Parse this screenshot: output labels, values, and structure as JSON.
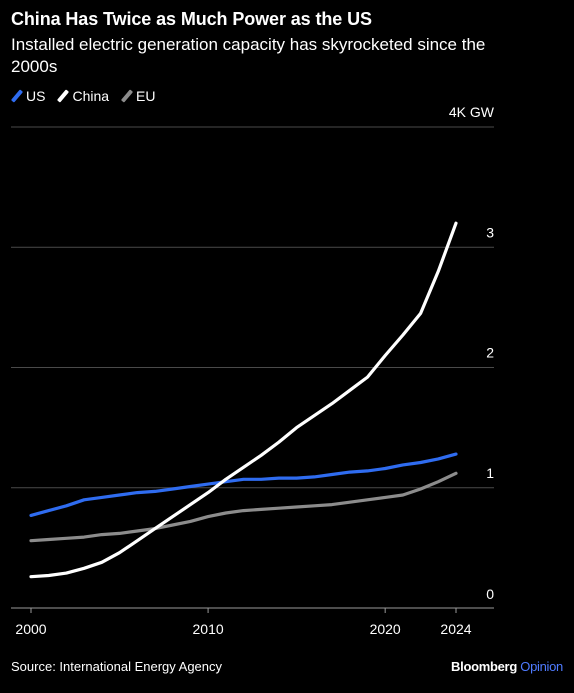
{
  "header": {
    "title": "China Has Twice as Much Power as the US",
    "subtitle": "Installed electric generation capacity has skyrocketed since the 2000s"
  },
  "legend": [
    {
      "label": "US",
      "color": "#2f6cf0"
    },
    {
      "label": "China",
      "color": "#ffffff"
    },
    {
      "label": "EU",
      "color": "#8c8c8c"
    }
  ],
  "footer": {
    "source": "Source: International Energy Agency",
    "brand": "Bloomberg",
    "brand_suffix": "Opinion"
  },
  "chart_data": {
    "type": "line",
    "ylim": [
      0,
      4
    ],
    "xlim": [
      2000,
      2024
    ],
    "y_ticks": [
      {
        "value": 0,
        "label": "0"
      },
      {
        "value": 1,
        "label": "1"
      },
      {
        "value": 2,
        "label": "2"
      },
      {
        "value": 3,
        "label": "3"
      },
      {
        "value": 4,
        "label": "4K GW"
      }
    ],
    "x_ticks": [
      {
        "value": 2000,
        "label": "2000"
      },
      {
        "value": 2010,
        "label": "2010"
      },
      {
        "value": 2020,
        "label": "2020"
      },
      {
        "value": 2024,
        "label": "2024"
      }
    ],
    "grid": true,
    "legend_position": "top-left",
    "series": [
      {
        "name": "US",
        "color": "#2f6cf0",
        "x": [
          2000,
          2001,
          2002,
          2003,
          2004,
          2005,
          2006,
          2007,
          2008,
          2009,
          2010,
          2011,
          2012,
          2013,
          2014,
          2015,
          2016,
          2017,
          2018,
          2019,
          2020,
          2021,
          2022,
          2023,
          2024
        ],
        "y": [
          0.77,
          0.81,
          0.85,
          0.9,
          0.92,
          0.94,
          0.96,
          0.97,
          0.99,
          1.01,
          1.03,
          1.05,
          1.07,
          1.07,
          1.08,
          1.08,
          1.09,
          1.11,
          1.13,
          1.14,
          1.16,
          1.19,
          1.21,
          1.24,
          1.28
        ]
      },
      {
        "name": "China",
        "color": "#ffffff",
        "x": [
          2000,
          2001,
          2002,
          2003,
          2004,
          2005,
          2006,
          2007,
          2008,
          2009,
          2010,
          2011,
          2012,
          2013,
          2014,
          2015,
          2016,
          2017,
          2018,
          2019,
          2020,
          2021,
          2022,
          2023,
          2024
        ],
        "y": [
          0.26,
          0.27,
          0.29,
          0.33,
          0.38,
          0.46,
          0.56,
          0.66,
          0.76,
          0.86,
          0.96,
          1.07,
          1.17,
          1.27,
          1.38,
          1.5,
          1.6,
          1.7,
          1.81,
          1.92,
          2.1,
          2.27,
          2.45,
          2.8,
          3.2
        ]
      },
      {
        "name": "EU",
        "color": "#8c8c8c",
        "x": [
          2000,
          2001,
          2002,
          2003,
          2004,
          2005,
          2006,
          2007,
          2008,
          2009,
          2010,
          2011,
          2012,
          2013,
          2014,
          2015,
          2016,
          2017,
          2018,
          2019,
          2020,
          2021,
          2022,
          2023,
          2024
        ],
        "y": [
          0.56,
          0.57,
          0.58,
          0.59,
          0.61,
          0.62,
          0.64,
          0.66,
          0.69,
          0.72,
          0.76,
          0.79,
          0.81,
          0.82,
          0.83,
          0.84,
          0.85,
          0.86,
          0.88,
          0.9,
          0.92,
          0.94,
          0.99,
          1.05,
          1.12
        ]
      }
    ]
  }
}
